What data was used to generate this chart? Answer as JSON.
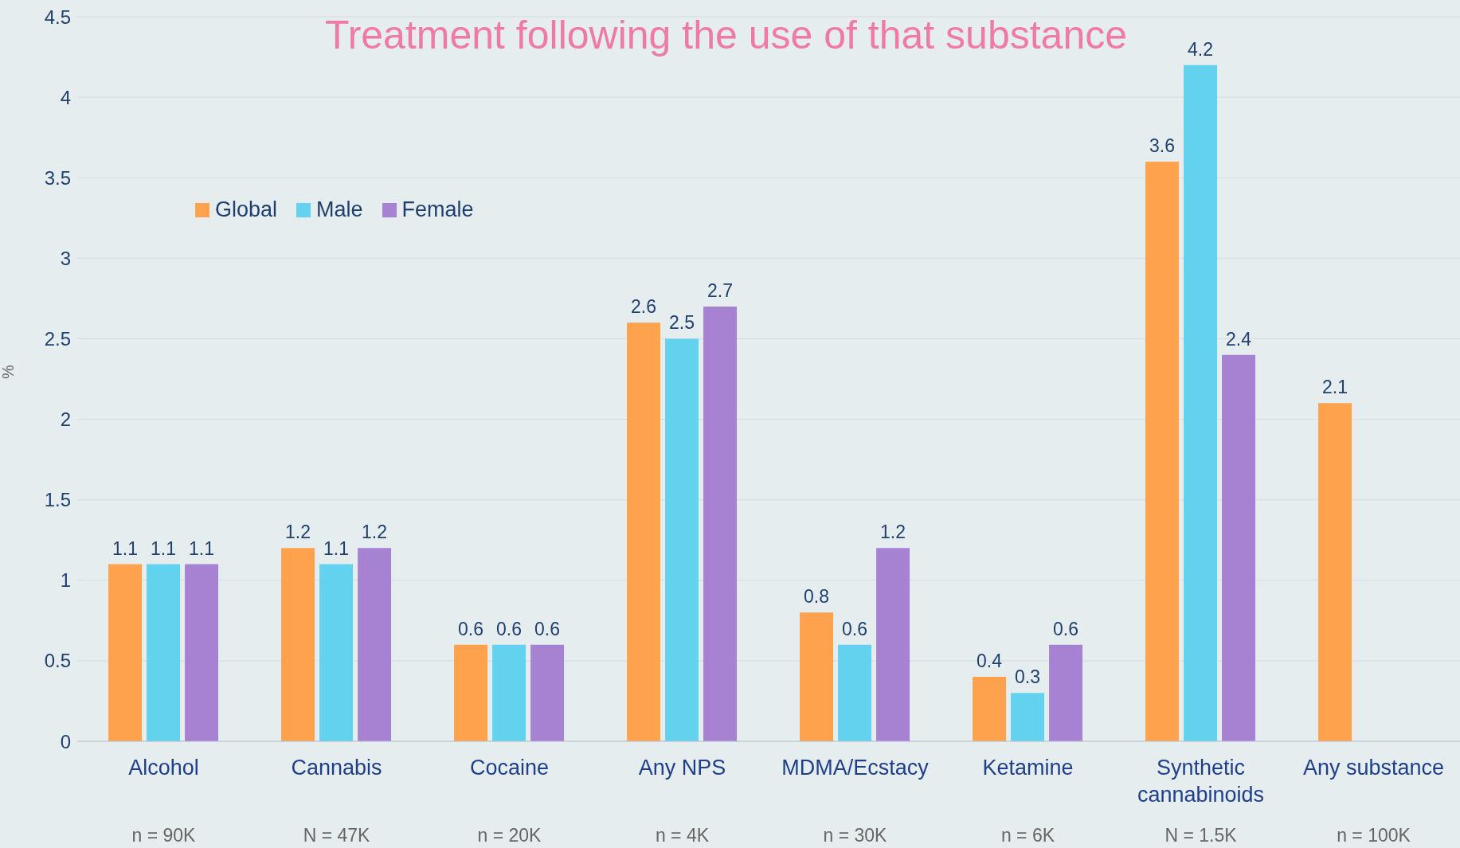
{
  "chart_data": {
    "type": "bar",
    "title": "Treatment following the use of that substance",
    "ylabel": "%",
    "categories": [
      "Alcohol",
      "Cannabis",
      "Cocaine",
      "Any NPS",
      "MDMA/Ecstacy",
      "Ketamine",
      "Synthetic cannabinoids",
      "Any substance"
    ],
    "series": [
      {
        "name": "Global",
        "color": "#ffa24e",
        "values": [
          1.1,
          1.2,
          0.6,
          2.6,
          0.8,
          0.4,
          3.6,
          2.1
        ]
      },
      {
        "name": "Male",
        "color": "#62d2ee",
        "values": [
          1.1,
          1.1,
          0.6,
          2.5,
          0.6,
          0.3,
          4.2,
          null
        ]
      },
      {
        "name": "Female",
        "color": "#a782d2",
        "values": [
          1.1,
          1.2,
          0.6,
          2.7,
          1.2,
          0.6,
          2.4,
          null
        ]
      }
    ],
    "ylim": [
      0,
      4.5
    ],
    "yticks": [
      0,
      0.5,
      1,
      1.5,
      2,
      2.5,
      3,
      3.5,
      4,
      4.5
    ],
    "grid": "y",
    "legend": "top left",
    "data_labels": true,
    "annotations": [
      "n = 90K",
      "N = 47K",
      "n = 20K",
      "n = 4K",
      "n = 30K",
      "n = 6K",
      "N = 1.5K",
      "n = 100K"
    ]
  }
}
